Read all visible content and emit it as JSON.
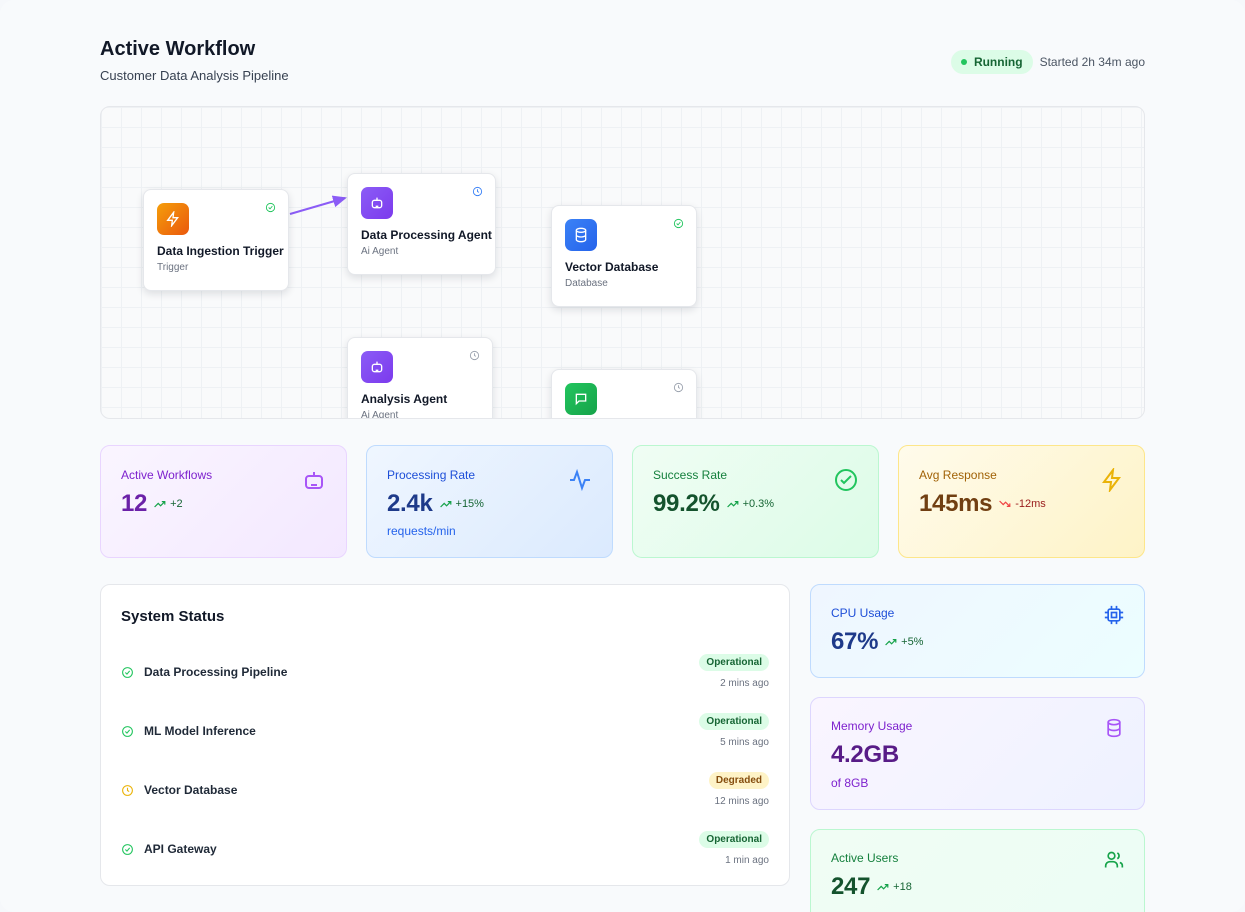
{
  "header": {
    "title": "Active Workflow",
    "subtitle": "Customer Data Analysis Pipeline",
    "status": "Running",
    "started": "Started 2h 34m ago"
  },
  "nodes": [
    {
      "title": "Data Ingestion Trigger",
      "type": "Trigger",
      "icon": "lightning-icon",
      "state": "completed"
    },
    {
      "title": "Data Processing Agent",
      "type": "Ai Agent",
      "icon": "robot-icon",
      "state": "running"
    },
    {
      "title": "Vector Database",
      "type": "Database",
      "icon": "database-icon",
      "state": "completed"
    },
    {
      "title": "Analysis Agent",
      "type": "Ai Agent",
      "icon": "robot-icon",
      "state": "pending"
    },
    {
      "title": "",
      "type": "",
      "icon": "chat-icon",
      "state": "pending"
    }
  ],
  "metrics": [
    {
      "label": "Active Workflows",
      "value": "12",
      "delta": "+2",
      "sub": "",
      "trend": "up",
      "icon": "robot-icon",
      "color": "#8b2cd8"
    },
    {
      "label": "Processing Rate",
      "value": "2.4k",
      "delta": "+15%",
      "sub": "requests/min",
      "trend": "up",
      "icon": "activity-icon",
      "color": "#2563eb"
    },
    {
      "label": "Success Rate",
      "value": "99.2%",
      "delta": "+0.3%",
      "sub": "",
      "trend": "up",
      "icon": "check-circle-icon",
      "color": "#16a34a"
    },
    {
      "label": "Avg Response",
      "value": "145ms",
      "delta": "-12ms",
      "sub": "",
      "trend": "down",
      "icon": "lightning-icon",
      "color": "#ca8a04"
    }
  ],
  "system": {
    "title": "System Status",
    "items": [
      {
        "name": "Data Processing Pipeline",
        "status": "Operational",
        "time": "2 mins ago",
        "state": "ok"
      },
      {
        "name": "ML Model Inference",
        "status": "Operational",
        "time": "5 mins ago",
        "state": "ok"
      },
      {
        "name": "Vector Database",
        "status": "Degraded",
        "time": "12 mins ago",
        "state": "warn"
      },
      {
        "name": "API Gateway",
        "status": "Operational",
        "time": "1 min ago",
        "state": "ok"
      }
    ]
  },
  "resources": [
    {
      "label": "CPU Usage",
      "value": "67%",
      "delta": "+5%",
      "sub": "",
      "icon": "cpu-icon"
    },
    {
      "label": "Memory Usage",
      "value": "4.2GB",
      "delta": "",
      "sub": "of 8GB",
      "icon": "database-icon"
    },
    {
      "label": "Active Users",
      "value": "247",
      "delta": "+18",
      "sub": "",
      "icon": "users-icon"
    }
  ]
}
